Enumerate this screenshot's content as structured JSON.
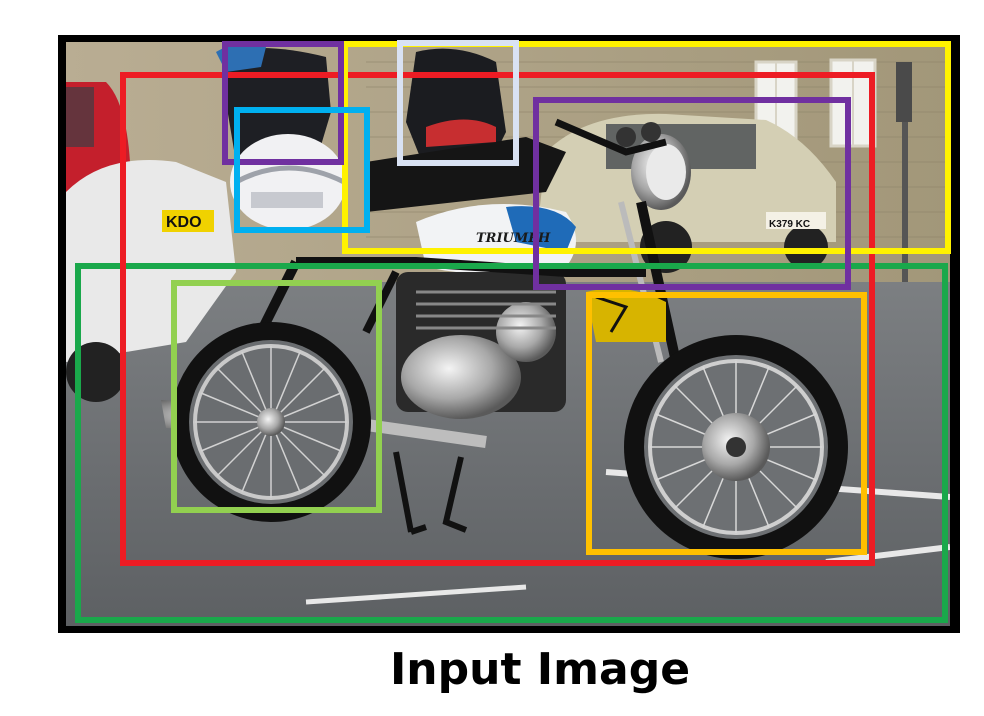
{
  "caption": "Input Image",
  "photo": {
    "subject": "motorcycle parked on street",
    "plate_text_left": "KDO",
    "plate_text_car": "K379 KC",
    "tank_badge": "TRIUMPH"
  },
  "detection_boxes": [
    {
      "name": "bbox-red",
      "color": "#ed1c24"
    },
    {
      "name": "bbox-green",
      "color": "#1aa84b"
    },
    {
      "name": "bbox-yellow",
      "color": "#fff200"
    },
    {
      "name": "bbox-purple-rider",
      "color": "#7030a0"
    },
    {
      "name": "bbox-purple-headlight",
      "color": "#7030a0"
    },
    {
      "name": "bbox-lightblue-helmet",
      "color": "#00b0f0"
    },
    {
      "name": "bbox-white-rider",
      "color": "#d9e2f3"
    },
    {
      "name": "bbox-lightgreen-rearwheel",
      "color": "#92d050"
    },
    {
      "name": "bbox-orange-frontwheel",
      "color": "#ffc000"
    }
  ]
}
